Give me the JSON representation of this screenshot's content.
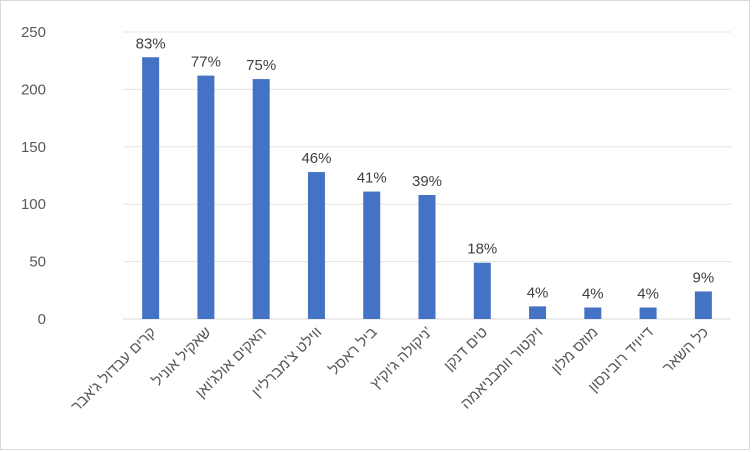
{
  "chart_data": {
    "type": "bar",
    "title": "",
    "xlabel": "",
    "ylabel": "",
    "ylim": [
      0,
      250
    ],
    "yticks": [
      0,
      50,
      100,
      150,
      200,
      250
    ],
    "grid": true,
    "legend": "none",
    "bar_color": "#4472c4",
    "categories": [
      "קרים עבדול ג'אבר",
      "שאקיל אוניל",
      "האקים אולג'ואן",
      "ווילט צ'מברליין",
      "ביל ראסל",
      "ניקולה ג'וקיץ'",
      "טים דנקן",
      "ויקטור וומבניאמה",
      "מוזס מלון",
      "דייויד רובינסון",
      "כל השאר"
    ],
    "values": [
      228,
      212,
      209,
      128,
      111,
      108,
      49,
      11,
      10,
      10,
      24
    ],
    "data_labels": [
      "83%",
      "77%",
      "75%",
      "46%",
      "41%",
      "39%",
      "18%",
      "4%",
      "4%",
      "4%",
      "9%"
    ]
  }
}
